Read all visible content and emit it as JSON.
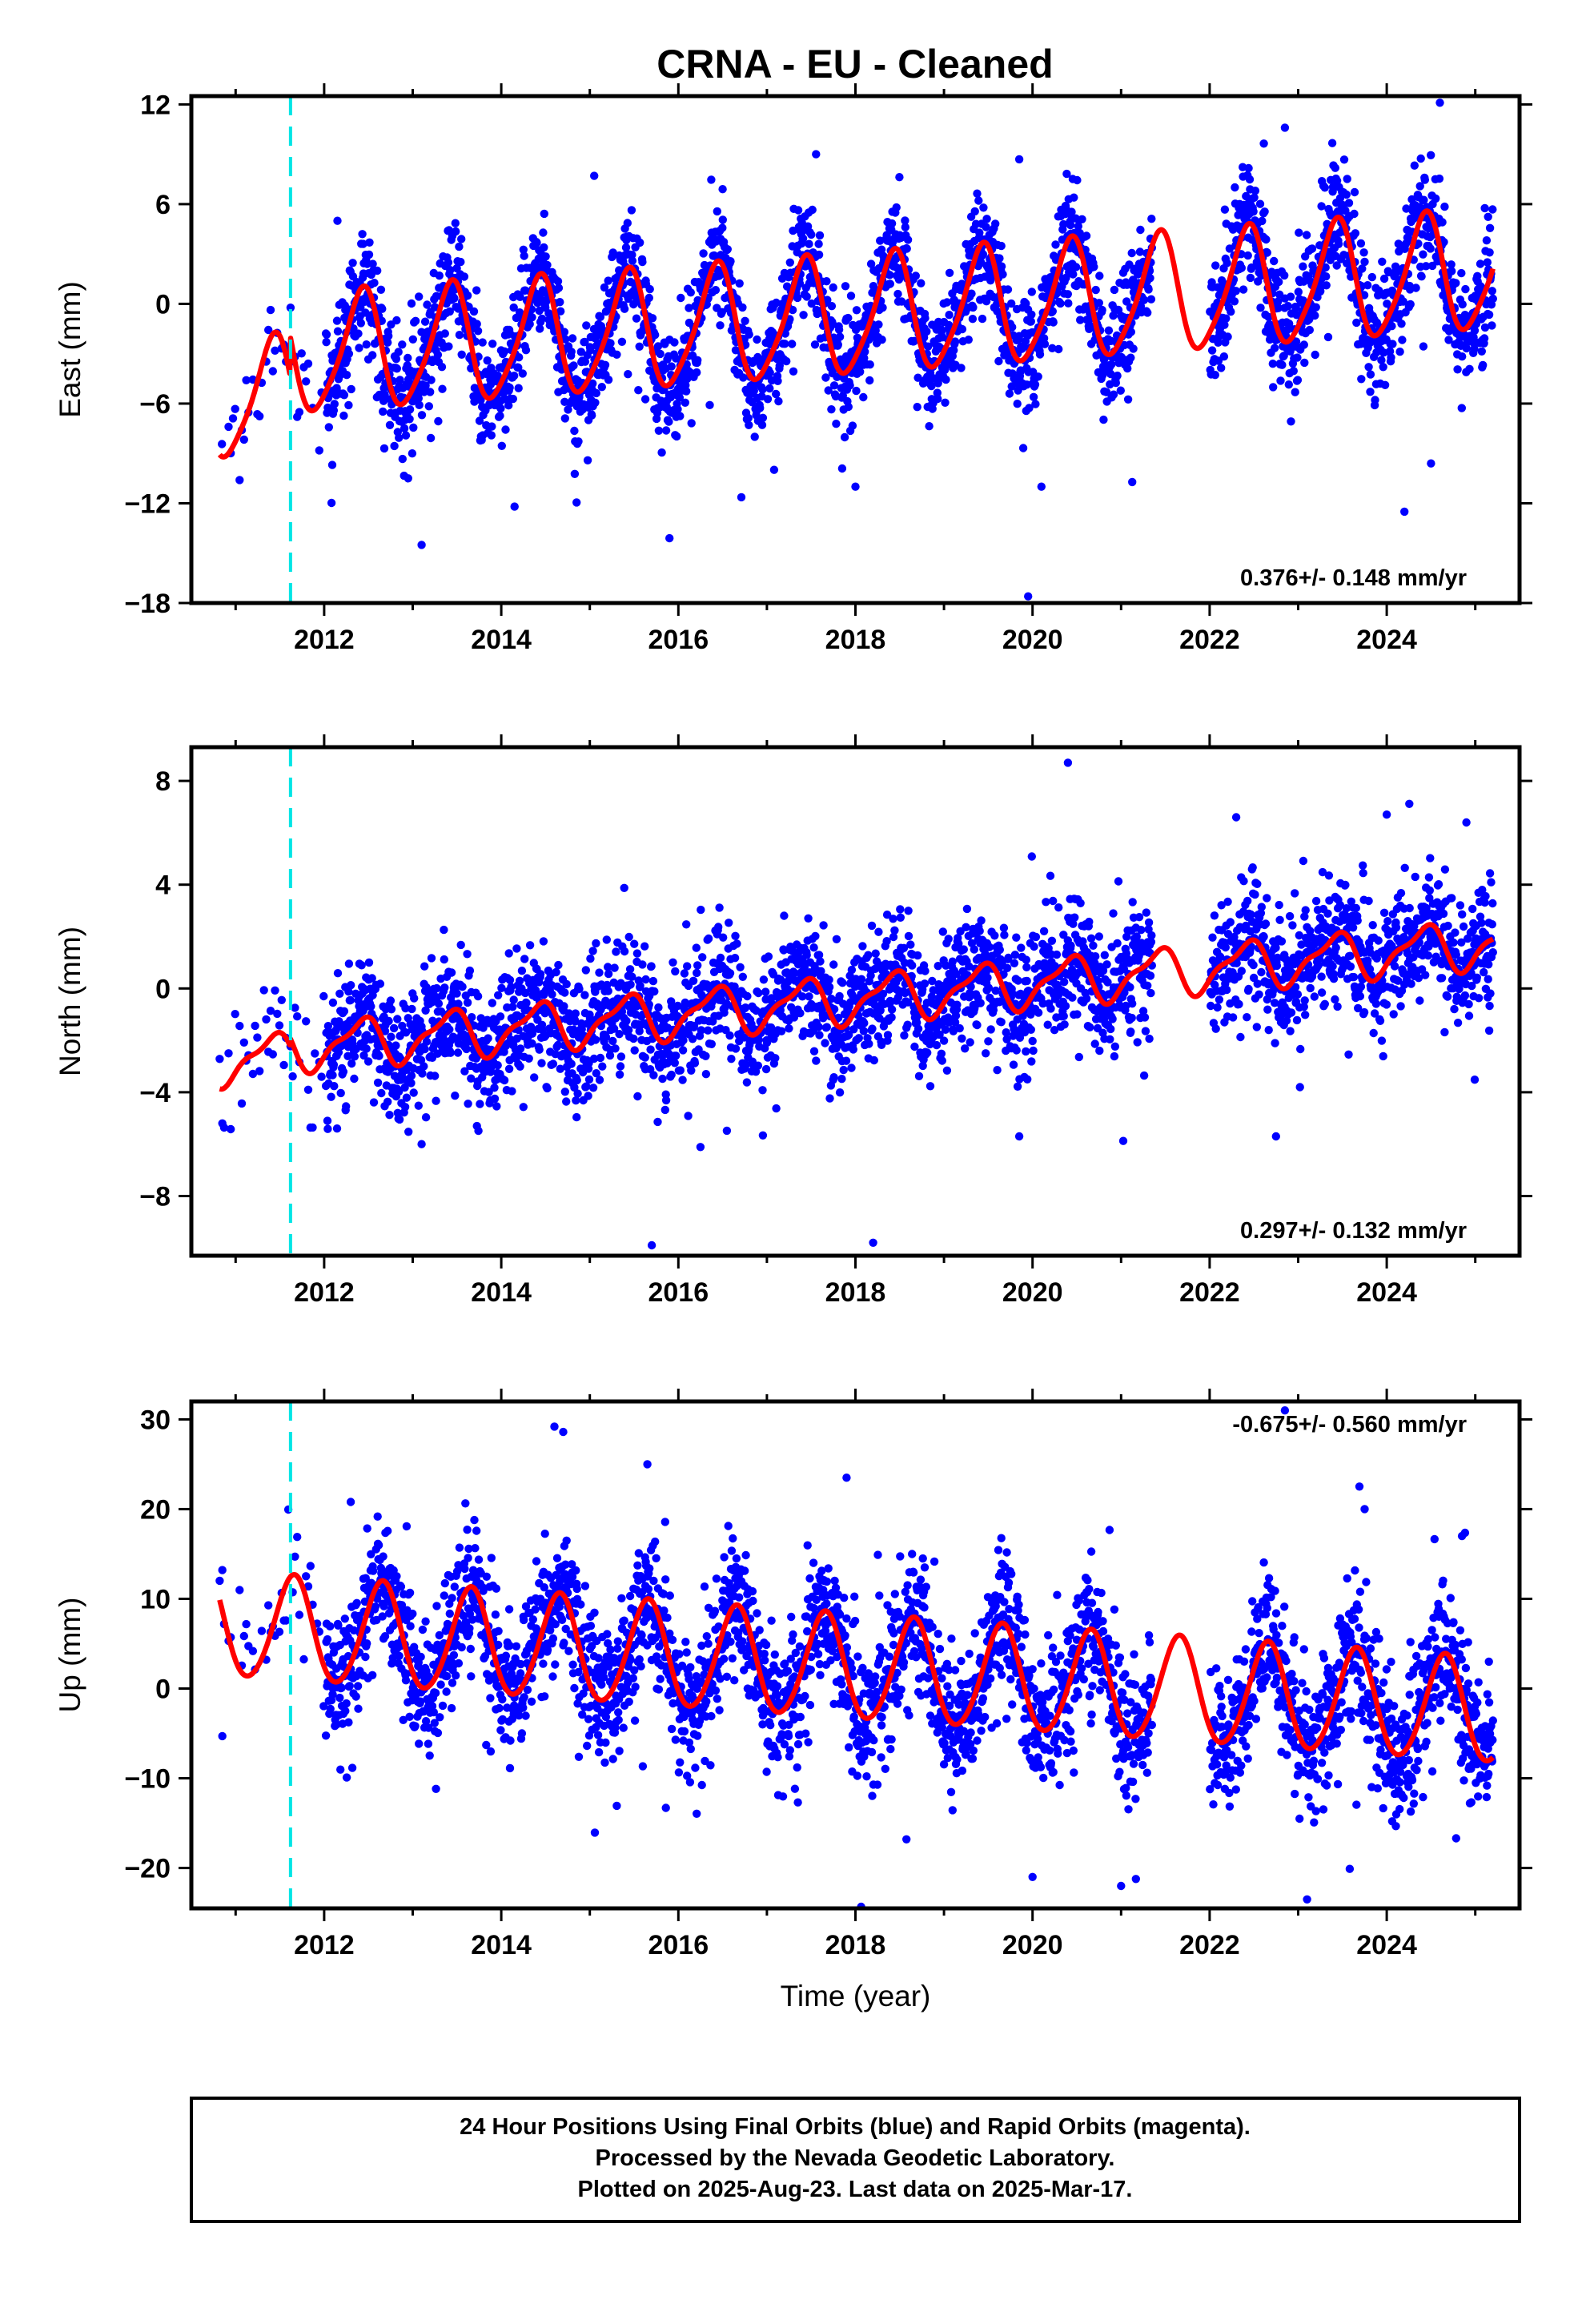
{
  "page": {
    "title": "CRNA  - EU - Cleaned",
    "footer_lines": [
      "24 Hour Positions Using Final Orbits (blue) and Rapid Orbits (magenta).",
      "Processed by the Nevada Geodetic Laboratory.",
      "Plotted on 2025-Aug-23. Last data on 2025-Mar-17."
    ]
  },
  "colors": {
    "points": "#0000ff",
    "fit": "#ff0000",
    "event_line": "#00e5e5",
    "frame": "#000000"
  },
  "chart_data": [
    {
      "type": "scatter",
      "panel": "east",
      "ylabel": "East (mm)",
      "xlabel": "",
      "title": "",
      "xlim": [
        2010.5,
        2025.5
      ],
      "ylim": [
        -18,
        12.5
      ],
      "yticks": [
        -18,
        -12,
        -6,
        0,
        6,
        12
      ],
      "xticks": [
        2012,
        2014,
        2016,
        2018,
        2020,
        2022,
        2024
      ],
      "event_x": 2011.62,
      "rate_label": "0.376+/- 0.148 mm/yr",
      "rate_position": "bottom-right",
      "data_range": [
        2010.82,
        2025.2
      ],
      "data_gap": [
        2021.35,
        2022.0
      ],
      "fit_model": {
        "ref_year": 2018,
        "offset": -0.76,
        "slope": 0.376,
        "annual_amplitude": 3.5,
        "annual_phase_year": 2018.42,
        "semiannual_amplitude": 0.6,
        "semiannual_phase_year": 2018.0,
        "pre_event_offset": -2.4,
        "scatter_sigma": 1.7
      },
      "outliers": [
        [
          2012.15,
          5.0
        ],
        [
          2013.1,
          -14.5
        ],
        [
          2014.15,
          -12.2
        ],
        [
          2015.05,
          7.7
        ],
        [
          2015.9,
          -14.1
        ],
        [
          2016.5,
          6.9
        ],
        [
          2018.0,
          -11.0
        ],
        [
          2019.85,
          8.7
        ],
        [
          2019.95,
          -17.6
        ],
        [
          2020.1,
          -11.0
        ],
        [
          2022.85,
          10.6
        ],
        [
          2024.2,
          -12.5
        ],
        [
          2024.6,
          12.1
        ],
        [
          2024.5,
          -9.6
        ]
      ]
    },
    {
      "type": "scatter",
      "panel": "north",
      "ylabel": "North (mm)",
      "xlabel": "",
      "title": "",
      "xlim": [
        2010.5,
        2025.5
      ],
      "ylim": [
        -10.3,
        9.3
      ],
      "yticks": [
        -8,
        -4,
        0,
        4,
        8
      ],
      "xticks": [
        2012,
        2014,
        2016,
        2018,
        2020,
        2022,
        2024
      ],
      "event_x": 2011.62,
      "rate_label": "0.297+/- 0.132 mm/yr",
      "rate_position": "bottom-right",
      "data_range": [
        2010.82,
        2025.2
      ],
      "data_gap": [
        2021.35,
        2022.0
      ],
      "fit_model": {
        "ref_year": 2018,
        "offset": -0.4,
        "slope": 0.297,
        "annual_amplitude": 0.85,
        "annual_phase_year": 2018.4,
        "semiannual_amplitude": 0.3,
        "semiannual_phase_year": 2018.05,
        "pre_event_offset": -0.3,
        "scatter_sigma": 1.15
      },
      "outliers": [
        [
          2010.85,
          -5.2
        ],
        [
          2013.1,
          -6.0
        ],
        [
          2015.7,
          -9.9
        ],
        [
          2018.2,
          -9.8
        ],
        [
          2019.85,
          -5.7
        ],
        [
          2020.4,
          8.7
        ],
        [
          2022.3,
          6.6
        ],
        [
          2022.75,
          -5.7
        ],
        [
          2024.0,
          6.7
        ],
        [
          2024.9,
          6.4
        ]
      ]
    },
    {
      "type": "scatter",
      "panel": "up",
      "ylabel": "Up (mm)",
      "xlabel": "Time (year)",
      "title": "",
      "xlim": [
        2010.5,
        2025.5
      ],
      "ylim": [
        -24.5,
        32
      ],
      "yticks": [
        -20,
        -10,
        0,
        10,
        20,
        30
      ],
      "xticks": [
        2012,
        2014,
        2016,
        2018,
        2020,
        2022,
        2024
      ],
      "event_x": 2011.62,
      "rate_label": "-0.675+/- 0.560 mm/yr",
      "rate_position": "top-right",
      "data_range": [
        2010.82,
        2025.2
      ],
      "data_gap": [
        2021.35,
        2022.0
      ],
      "fit_model": {
        "ref_year": 2018,
        "offset": 2.2,
        "slope": -0.675,
        "annual_amplitude": 5.8,
        "annual_phase_year": 2018.65,
        "semiannual_amplitude": 0.5,
        "semiannual_phase_year": 2018.2,
        "pre_event_offset": 0.0,
        "scatter_sigma": 3.8
      },
      "outliers": [
        [
          2010.85,
          13.2
        ],
        [
          2010.85,
          -5.3
        ],
        [
          2012.3,
          20.8
        ],
        [
          2014.6,
          29.2
        ],
        [
          2014.7,
          28.6
        ],
        [
          2015.65,
          25.0
        ],
        [
          2017.9,
          23.5
        ],
        [
          2020.0,
          -21.0
        ],
        [
          2021.0,
          -22.0
        ],
        [
          2022.85,
          31.0
        ],
        [
          2023.1,
          -23.5
        ],
        [
          2023.75,
          20.0
        ],
        [
          2024.85,
          17.0
        ]
      ]
    }
  ]
}
